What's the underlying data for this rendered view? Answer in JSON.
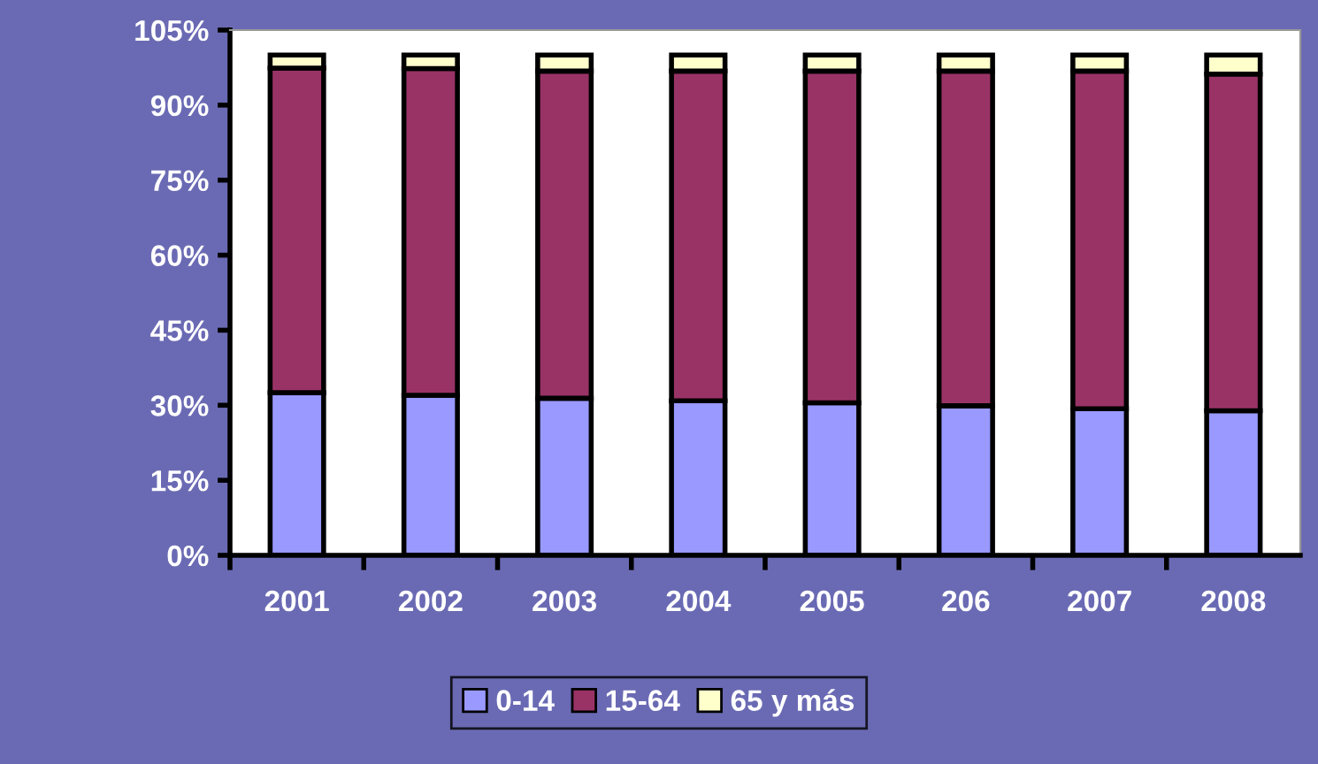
{
  "chart_data": {
    "type": "bar",
    "stacked": true,
    "categories": [
      "2001",
      "2002",
      "2003",
      "2004",
      "2005",
      "206",
      "2007",
      "2008"
    ],
    "series": [
      {
        "name": "0-14",
        "color": "#9999ff",
        "values": [
          32.5,
          32.0,
          31.4,
          30.9,
          30.5,
          29.9,
          29.3,
          28.9
        ]
      },
      {
        "name": "15-64",
        "color": "#993366",
        "values": [
          64.9,
          65.3,
          65.4,
          65.9,
          66.3,
          66.9,
          67.5,
          67.3
        ]
      },
      {
        "name": "65 y más",
        "color": "#ffffcc",
        "values": [
          2.6,
          2.7,
          3.2,
          3.2,
          3.2,
          3.2,
          3.2,
          3.8
        ]
      }
    ],
    "ylim": [
      0,
      105
    ],
    "yticks": [
      {
        "value": 0,
        "label": "0%"
      },
      {
        "value": 15,
        "label": "15%"
      },
      {
        "value": 30,
        "label": "30%"
      },
      {
        "value": 45,
        "label": "45%"
      },
      {
        "value": 60,
        "label": "60%"
      },
      {
        "value": 75,
        "label": "75%"
      },
      {
        "value": 90,
        "label": "90%"
      },
      {
        "value": 105,
        "label": "105%"
      }
    ],
    "grid": false,
    "legend": "bottom"
  }
}
